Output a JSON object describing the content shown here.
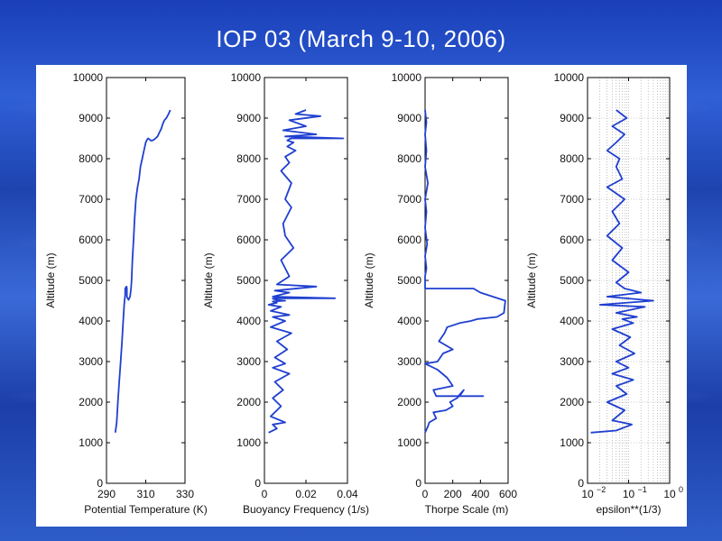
{
  "title": "IOP 03 (March 9-10, 2006)",
  "chart_data": [
    {
      "type": "line",
      "xlabel": "Potential Temperature (K)",
      "ylabel": "Altitude (m)",
      "xscale": "linear",
      "xlim": [
        290,
        330
      ],
      "ylim": [
        0,
        10000
      ],
      "xticks": [
        290,
        310,
        330
      ],
      "xtick_labels": [
        "290",
        "310",
        "330"
      ],
      "yticks": [
        0,
        1000,
        2000,
        3000,
        4000,
        5000,
        6000,
        7000,
        8000,
        9000,
        10000
      ],
      "grid": false,
      "series": [
        {
          "x": [
            294.5,
            295.2,
            295.8,
            296.5,
            297.2,
            297.9,
            298.5,
            299.0,
            299.5,
            299.5,
            300.2,
            300.4,
            300.4,
            301.2,
            302.0,
            302.5,
            302.8,
            303.2,
            303.8,
            304.3,
            305.0,
            305.8,
            306.6,
            307.3,
            308.2,
            309.1,
            310.0,
            310.8,
            311.3,
            311.8,
            312.5,
            313.5,
            314.5,
            316.0,
            317.0,
            318.0,
            318.6,
            319.5,
            320.5,
            321.6,
            322.5
          ],
          "y": [
            1250,
            1500,
            2000,
            2500,
            3000,
            3500,
            4000,
            4400,
            4650,
            4800,
            4850,
            4800,
            4600,
            4520,
            4600,
            4800,
            5000,
            5500,
            6000,
            6500,
            7000,
            7300,
            7500,
            7800,
            8000,
            8200,
            8400,
            8480,
            8500,
            8480,
            8450,
            8450,
            8480,
            8550,
            8650,
            8750,
            8850,
            8950,
            9000,
            9100,
            9200
          ]
        }
      ]
    },
    {
      "type": "line",
      "xlabel": "Buoyancy Frequency (1/s)",
      "ylabel": "Altitude (m)",
      "xscale": "linear",
      "xlim": [
        0,
        0.04
      ],
      "ylim": [
        0,
        10000
      ],
      "xticks": [
        0,
        0.02,
        0.04
      ],
      "xtick_labels": [
        "0",
        "0.02",
        "0.04"
      ],
      "yticks": [
        0,
        1000,
        2000,
        3000,
        4000,
        5000,
        6000,
        7000,
        8000,
        9000,
        10000
      ],
      "grid": false,
      "series": [
        {
          "x": [
            0.002,
            0.006,
            0.004,
            0.01,
            0.003,
            0.008,
            0.004,
            0.009,
            0.005,
            0.012,
            0.004,
            0.01,
            0.005,
            0.011,
            0.006,
            0.013,
            0.003,
            0.01,
            0.004,
            0.012,
            0.003,
            0.008,
            0.002,
            0.006,
            0.004,
            0.01,
            0.006,
            0.004,
            0.005,
            0.034,
            0.004,
            0.008,
            0.012,
            0.005,
            0.025,
            0.006,
            0.012,
            0.008,
            0.014,
            0.01,
            0.009,
            0.013,
            0.01,
            0.013,
            0.008,
            0.012,
            0.01,
            0.015,
            0.011,
            0.014,
            0.011,
            0.012,
            0.013,
            0.038,
            0.01,
            0.025,
            0.009,
            0.02,
            0.012,
            0.027,
            0.015,
            0.02
          ],
          "y": [
            1250,
            1350,
            1450,
            1500,
            1650,
            1900,
            2100,
            2300,
            2500,
            2700,
            2850,
            2950,
            3100,
            3300,
            3500,
            3700,
            3850,
            4000,
            4100,
            4150,
            4250,
            4350,
            4400,
            4450,
            4480,
            4500,
            4520,
            4550,
            4560,
            4560,
            4600,
            4650,
            4700,
            4750,
            4850,
            4900,
            5100,
            5500,
            5800,
            6100,
            6400,
            6800,
            7000,
            7400,
            7700,
            7900,
            8050,
            8200,
            8300,
            8400,
            8450,
            8480,
            8500,
            8500,
            8550,
            8600,
            8700,
            8800,
            8950,
            9050,
            9100,
            9200
          ]
        }
      ]
    },
    {
      "type": "line",
      "xlabel": "Thorpe Scale (m)",
      "ylabel": "Altitude (m)",
      "xscale": "linear",
      "xlim": [
        0,
        600
      ],
      "ylim": [
        0,
        10000
      ],
      "xticks": [
        0,
        200,
        400,
        600
      ],
      "xtick_labels": [
        "0",
        "200",
        "400",
        "600"
      ],
      "yticks": [
        0,
        1000,
        2000,
        3000,
        4000,
        5000,
        6000,
        7000,
        8000,
        9000,
        10000
      ],
      "grid": false,
      "series": [
        {
          "x": [
            0,
            20,
            30,
            80,
            60,
            150,
            200,
            180,
            230,
            260,
            280,
            240,
            420,
            80,
            60,
            200,
            160,
            90,
            0,
            90,
            130,
            200,
            100,
            140,
            160,
            250,
            330,
            380,
            520,
            570,
            580,
            400,
            350,
            0,
            0,
            10,
            0,
            15,
            0,
            10,
            0,
            20,
            0,
            10,
            0,
            10,
            0
          ],
          "y": [
            1250,
            1400,
            1500,
            1600,
            1750,
            1800,
            1900,
            2000,
            2100,
            2200,
            2300,
            2150,
            2150,
            2150,
            2300,
            2400,
            2600,
            2800,
            2950,
            3000,
            3200,
            3300,
            3500,
            3700,
            3850,
            3950,
            4000,
            4050,
            4100,
            4200,
            4500,
            4700,
            4800,
            4800,
            5100,
            5300,
            5600,
            5900,
            6300,
            6700,
            7000,
            7400,
            7800,
            8200,
            8600,
            8900,
            9200
          ]
        }
      ]
    },
    {
      "type": "line",
      "xlabel": "epsilon**(1/3)",
      "ylabel": "Altitude (m)",
      "xscale": "log",
      "xlim": [
        0.01,
        1
      ],
      "ylim": [
        0,
        10000
      ],
      "xticks": [
        0.01,
        0.1,
        1
      ],
      "xtick_labels": [
        "10",
        "10",
        "10"
      ],
      "xtick_exponents": [
        "−2",
        "−1",
        "0"
      ],
      "yticks": [
        0,
        1000,
        2000,
        3000,
        4000,
        5000,
        6000,
        7000,
        8000,
        9000,
        10000
      ],
      "grid": true,
      "series": [
        {
          "x": [
            0.012,
            0.05,
            0.12,
            0.04,
            0.08,
            0.03,
            0.09,
            0.05,
            0.13,
            0.04,
            0.1,
            0.05,
            0.14,
            0.06,
            0.11,
            0.04,
            0.13,
            0.07,
            0.16,
            0.05,
            0.25,
            0.02,
            0.4,
            0.03,
            0.2,
            0.08,
            0.05,
            0.1,
            0.04,
            0.07,
            0.03,
            0.06,
            0.04,
            0.08,
            0.03,
            0.07,
            0.05,
            0.06,
            0.03,
            0.05,
            0.08,
            0.04,
            0.09,
            0.05
          ],
          "y": [
            1250,
            1300,
            1450,
            1550,
            1800,
            2000,
            2200,
            2400,
            2550,
            2700,
            2850,
            3000,
            3200,
            3400,
            3600,
            3800,
            3950,
            4050,
            4100,
            4200,
            4350,
            4400,
            4500,
            4600,
            4700,
            4800,
            4950,
            5200,
            5500,
            5800,
            6100,
            6400,
            6700,
            7000,
            7300,
            7500,
            7800,
            8000,
            8200,
            8400,
            8600,
            8800,
            9000,
            9200
          ]
        }
      ]
    }
  ]
}
